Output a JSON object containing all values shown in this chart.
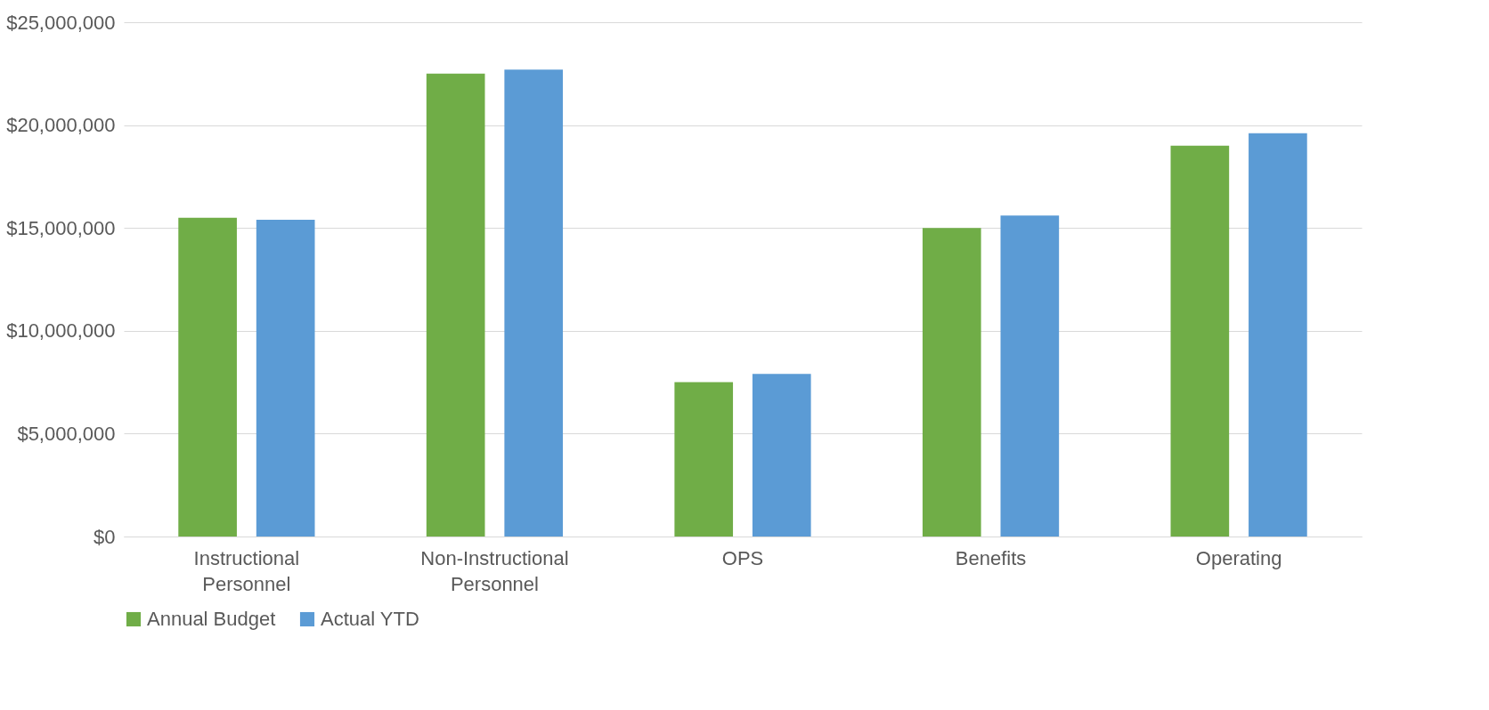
{
  "chart_data": {
    "type": "bar",
    "categories": [
      "Instructional Personnel",
      "Non-Instructional Personnel",
      "OPS",
      "Benefits",
      "Operating"
    ],
    "series": [
      {
        "name": "Annual Budget",
        "color": "#70ad47",
        "values": [
          15500000,
          22500000,
          7500000,
          15000000,
          19000000
        ]
      },
      {
        "name": "Actual YTD",
        "color": "#5b9bd5",
        "values": [
          15400000,
          22700000,
          7900000,
          15600000,
          19600000
        ]
      }
    ],
    "ylim": [
      0,
      25000000
    ],
    "yticks": [
      {
        "value": 0,
        "label": "$0"
      },
      {
        "value": 5000000,
        "label": "$5,000,000"
      },
      {
        "value": 10000000,
        "label": "$10,000,000"
      },
      {
        "value": 15000000,
        "label": "$15,000,000"
      },
      {
        "value": 20000000,
        "label": "$20,000,000"
      },
      {
        "value": 25000000,
        "label": "$25,000,000"
      }
    ],
    "grid": "y",
    "legend": "bottom"
  }
}
